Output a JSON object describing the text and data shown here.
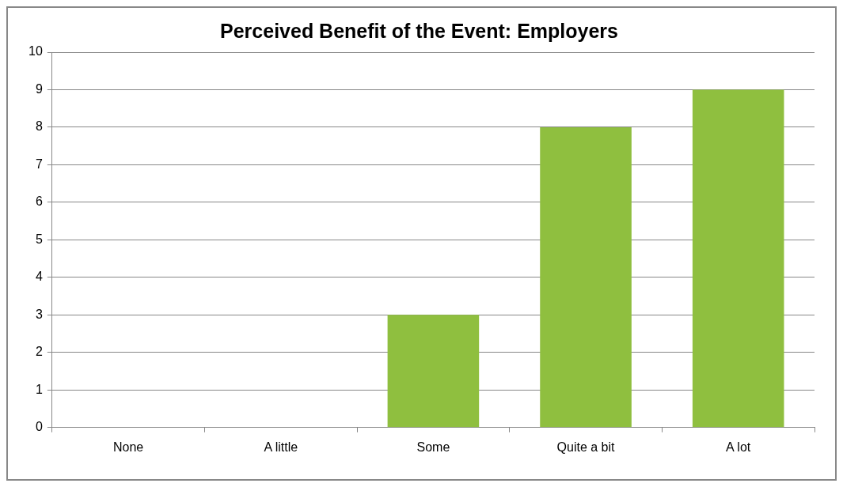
{
  "chart_data": {
    "type": "bar",
    "title": "Perceived Benefit of the Event: Employers",
    "categories": [
      "None",
      "A little",
      "Some",
      "Quite a bit",
      "A lot"
    ],
    "values": [
      0,
      0,
      3,
      8,
      9
    ],
    "color": "#8fbf3f",
    "ylim": [
      0,
      10
    ],
    "yticks": [
      0,
      1,
      2,
      3,
      4,
      5,
      6,
      7,
      8,
      9,
      10
    ],
    "grid": "y"
  }
}
